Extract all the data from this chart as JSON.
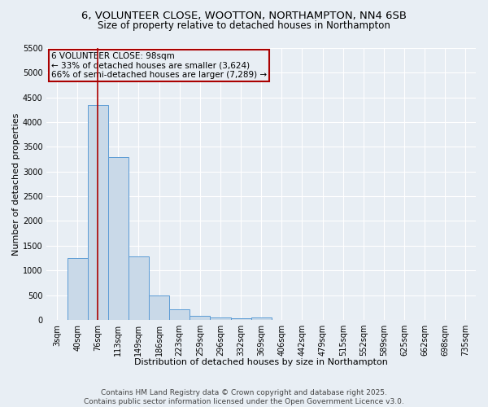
{
  "title_line1": "6, VOLUNTEER CLOSE, WOOTTON, NORTHAMPTON, NN4 6SB",
  "title_line2": "Size of property relative to detached houses in Northampton",
  "xlabel": "Distribution of detached houses by size in Northampton",
  "ylabel": "Number of detached properties",
  "bar_color": "#c9d9e8",
  "bar_edge_color": "#5b9bd5",
  "categories": [
    "3sqm",
    "40sqm",
    "76sqm",
    "113sqm",
    "149sqm",
    "186sqm",
    "223sqm",
    "259sqm",
    "296sqm",
    "332sqm",
    "369sqm",
    "406sqm",
    "442sqm",
    "479sqm",
    "515sqm",
    "552sqm",
    "589sqm",
    "625sqm",
    "662sqm",
    "698sqm",
    "735sqm"
  ],
  "values": [
    0,
    1250,
    4350,
    3300,
    1280,
    500,
    215,
    85,
    55,
    35,
    40,
    0,
    0,
    0,
    0,
    0,
    0,
    0,
    0,
    0,
    0
  ],
  "ylim": [
    0,
    5500
  ],
  "yticks": [
    0,
    500,
    1000,
    1500,
    2000,
    2500,
    3000,
    3500,
    4000,
    4500,
    5000,
    5500
  ],
  "vline_color": "#aa0000",
  "annotation_text": "6 VOLUNTEER CLOSE: 98sqm\n← 33% of detached houses are smaller (3,624)\n66% of semi-detached houses are larger (7,289) →",
  "footer_line1": "Contains HM Land Registry data © Crown copyright and database right 2025.",
  "footer_line2": "Contains public sector information licensed under the Open Government Licence v3.0.",
  "background_color": "#e8eef4",
  "grid_color": "#ffffff",
  "title_fontsize": 9.5,
  "subtitle_fontsize": 8.5,
  "axis_label_fontsize": 8,
  "tick_fontsize": 7,
  "annotation_fontsize": 7.5,
  "footer_fontsize": 6.5
}
